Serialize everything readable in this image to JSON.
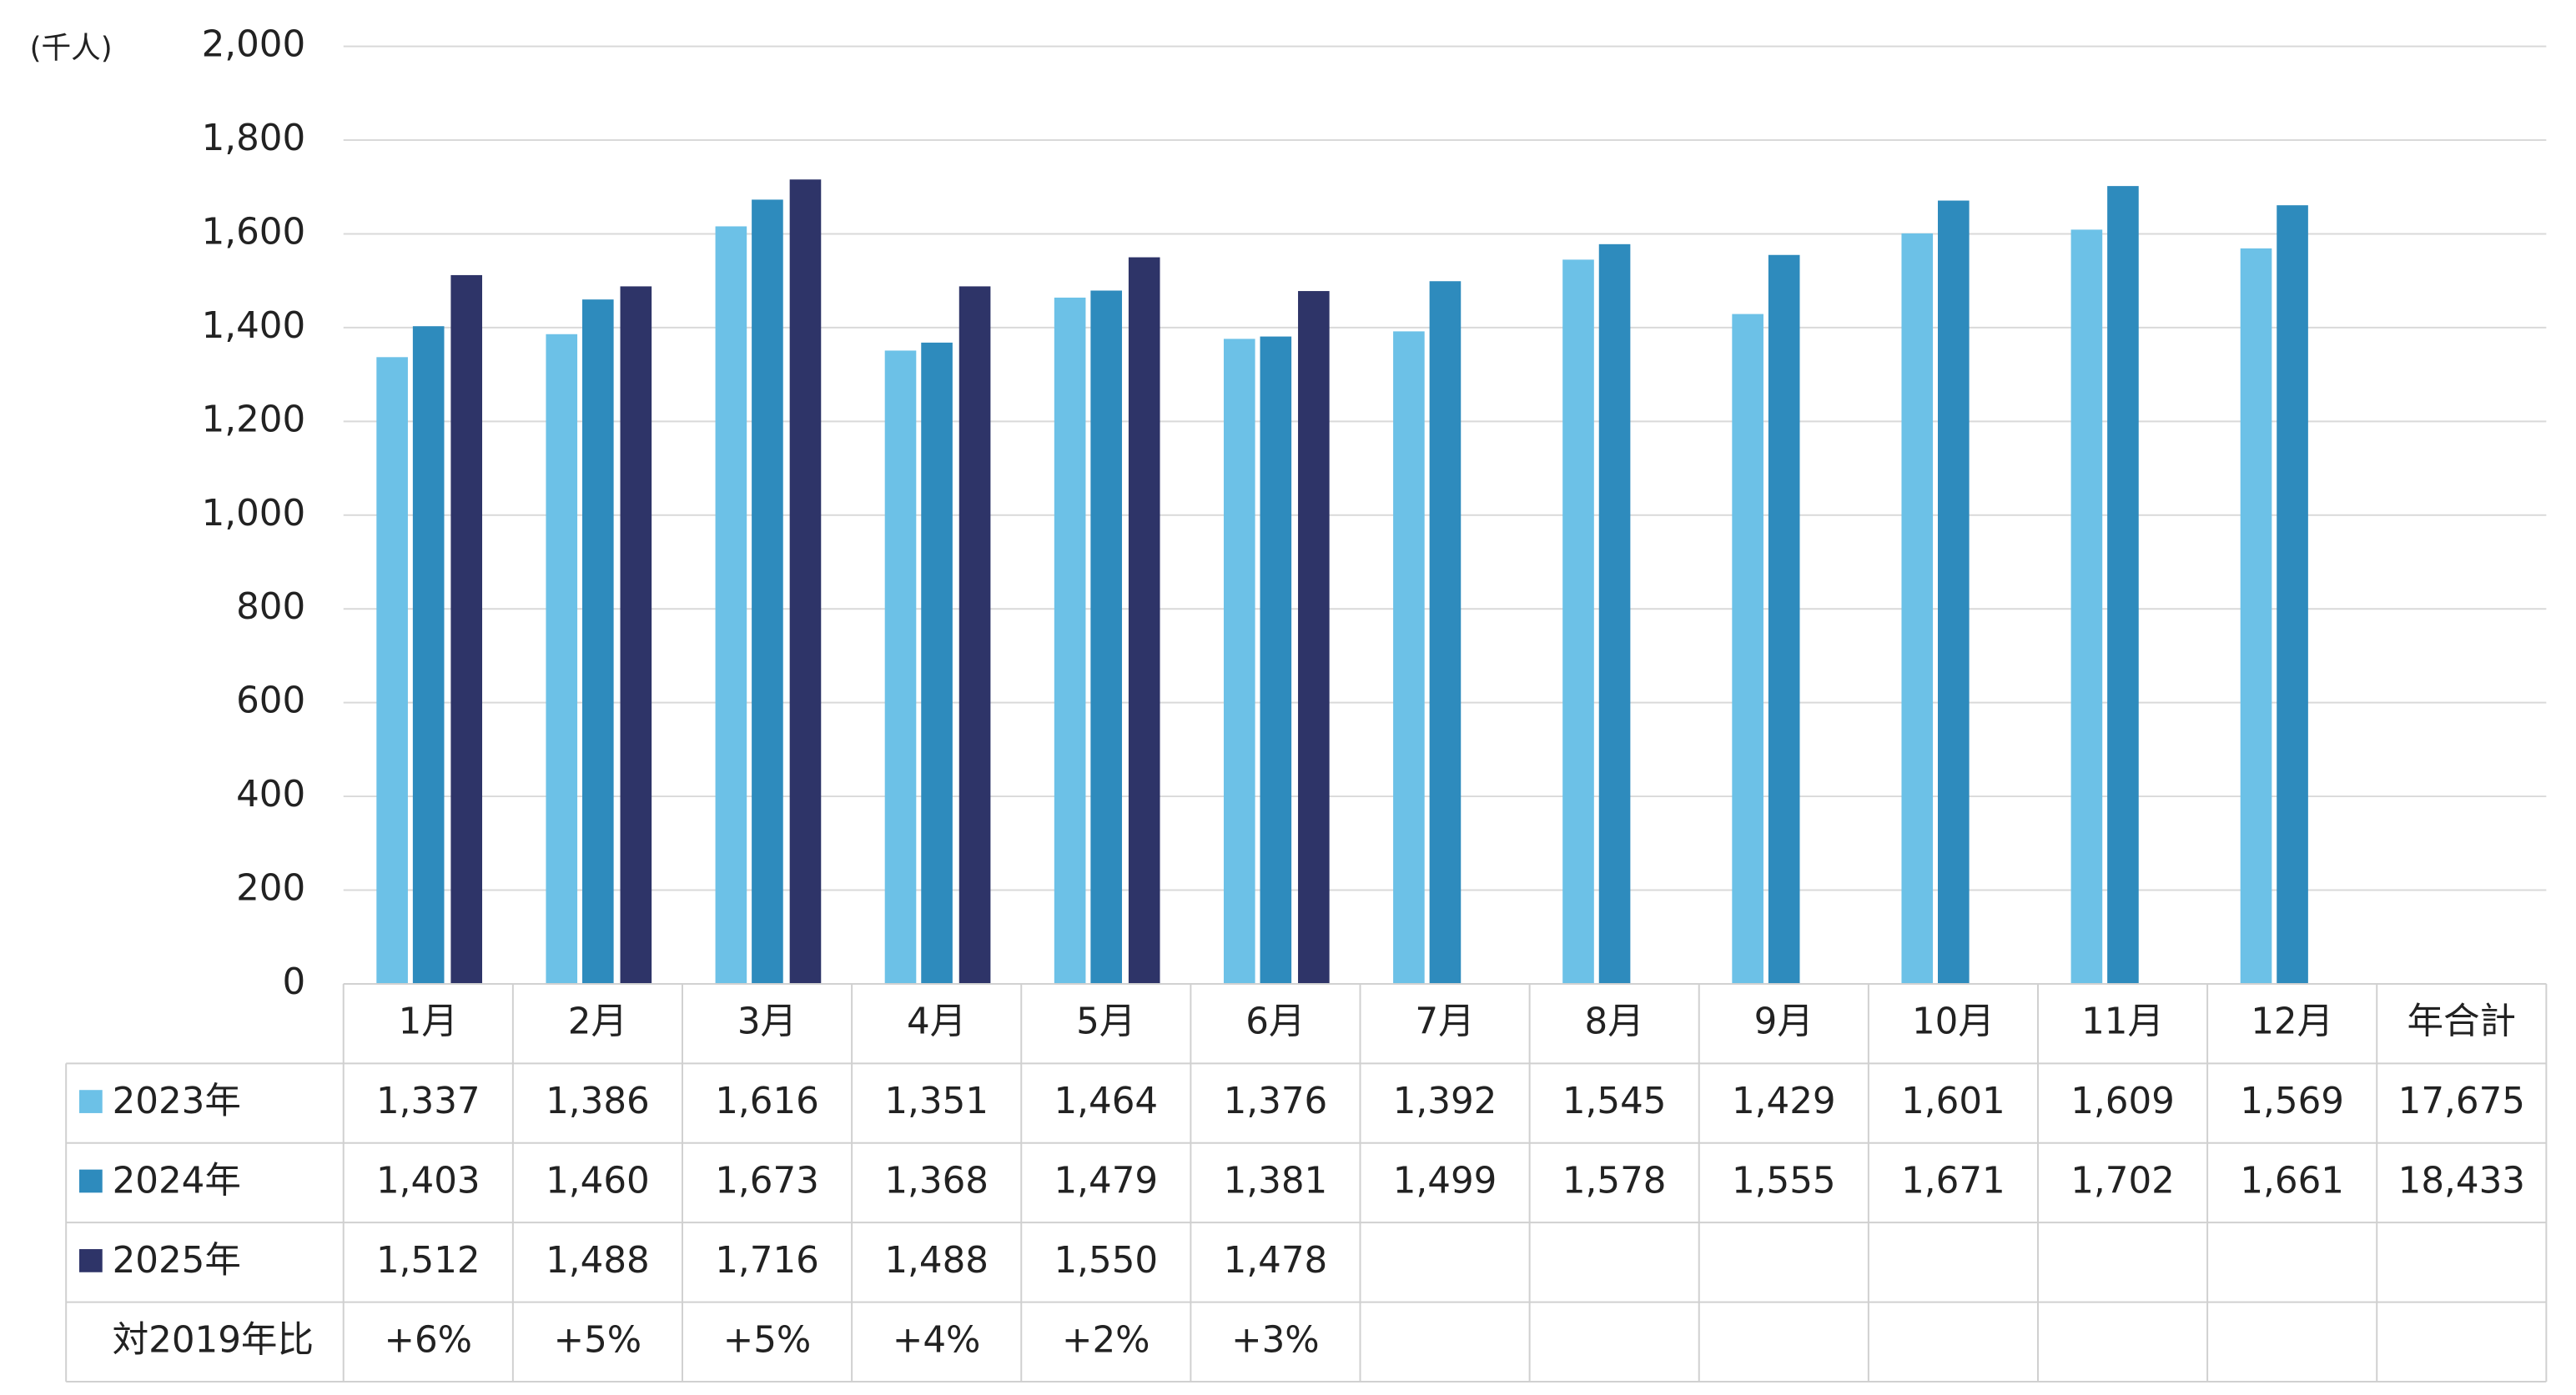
{
  "chart_data": {
    "type": "bar",
    "unit_label": "(千人)",
    "categories": [
      "1月",
      "2月",
      "3月",
      "4月",
      "5月",
      "6月",
      "7月",
      "8月",
      "9月",
      "10月",
      "11月",
      "12月"
    ],
    "series": [
      {
        "name": "2023年",
        "color": "#6cc1e7",
        "values": [
          1337,
          1386,
          1616,
          1351,
          1464,
          1376,
          1392,
          1545,
          1429,
          1601,
          1609,
          1569
        ],
        "value_labels": [
          "1,337",
          "1,386",
          "1,616",
          "1,351",
          "1,464",
          "1,376",
          "1,392",
          "1,545",
          "1,429",
          "1,601",
          "1,609",
          "1,569"
        ],
        "total": 17675,
        "total_label": "17,675"
      },
      {
        "name": "2024年",
        "color": "#2e8bbd",
        "values": [
          1403,
          1460,
          1673,
          1368,
          1479,
          1381,
          1499,
          1578,
          1555,
          1671,
          1702,
          1661
        ],
        "value_labels": [
          "1,403",
          "1,460",
          "1,673",
          "1,368",
          "1,479",
          "1,381",
          "1,499",
          "1,578",
          "1,555",
          "1,671",
          "1,702",
          "1,661"
        ],
        "total": 18433,
        "total_label": "18,433"
      },
      {
        "name": "2025年",
        "color": "#2e3468",
        "values": [
          1512,
          1488,
          1716,
          1488,
          1550,
          1478,
          null,
          null,
          null,
          null,
          null,
          null
        ],
        "value_labels": [
          "1,512",
          "1,488",
          "1,716",
          "1,488",
          "1,550",
          "1,478",
          null,
          null,
          null,
          null,
          null,
          null
        ]
      }
    ],
    "total_header": "年合計",
    "ratio": {
      "name": "対2019年比",
      "values": [
        6,
        5,
        5,
        4,
        2,
        3,
        null,
        null,
        null,
        null,
        null,
        null
      ],
      "value_labels": [
        "+6%",
        "+5%",
        "+5%",
        "+4%",
        "+2%",
        "+3%",
        null,
        null,
        null,
        null,
        null,
        null
      ]
    },
    "ylim": [
      0,
      2000
    ],
    "yticks": [
      0,
      200,
      400,
      600,
      800,
      {
        "value": 1000,
        "label": "1,000"
      },
      {
        "value": 1200,
        "label": "1,200"
      },
      {
        "value": 1400,
        "label": "1,400"
      },
      {
        "value": 1600,
        "label": "1,600"
      },
      {
        "value": 1800,
        "label": "1,800"
      },
      {
        "value": 2000,
        "label": "2,000"
      }
    ],
    "grid": true
  }
}
